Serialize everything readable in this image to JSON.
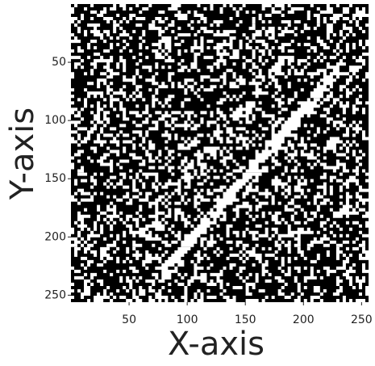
{
  "chart_data": {
    "type": "image",
    "xlabel": "X-axis",
    "ylabel": "Y-axis",
    "xlim": [
      0,
      256
    ],
    "ylim": [
      256,
      0
    ],
    "xticks": [
      50,
      100,
      150,
      200,
      250
    ],
    "yticks": [
      50,
      100,
      150,
      200,
      250
    ]
  }
}
